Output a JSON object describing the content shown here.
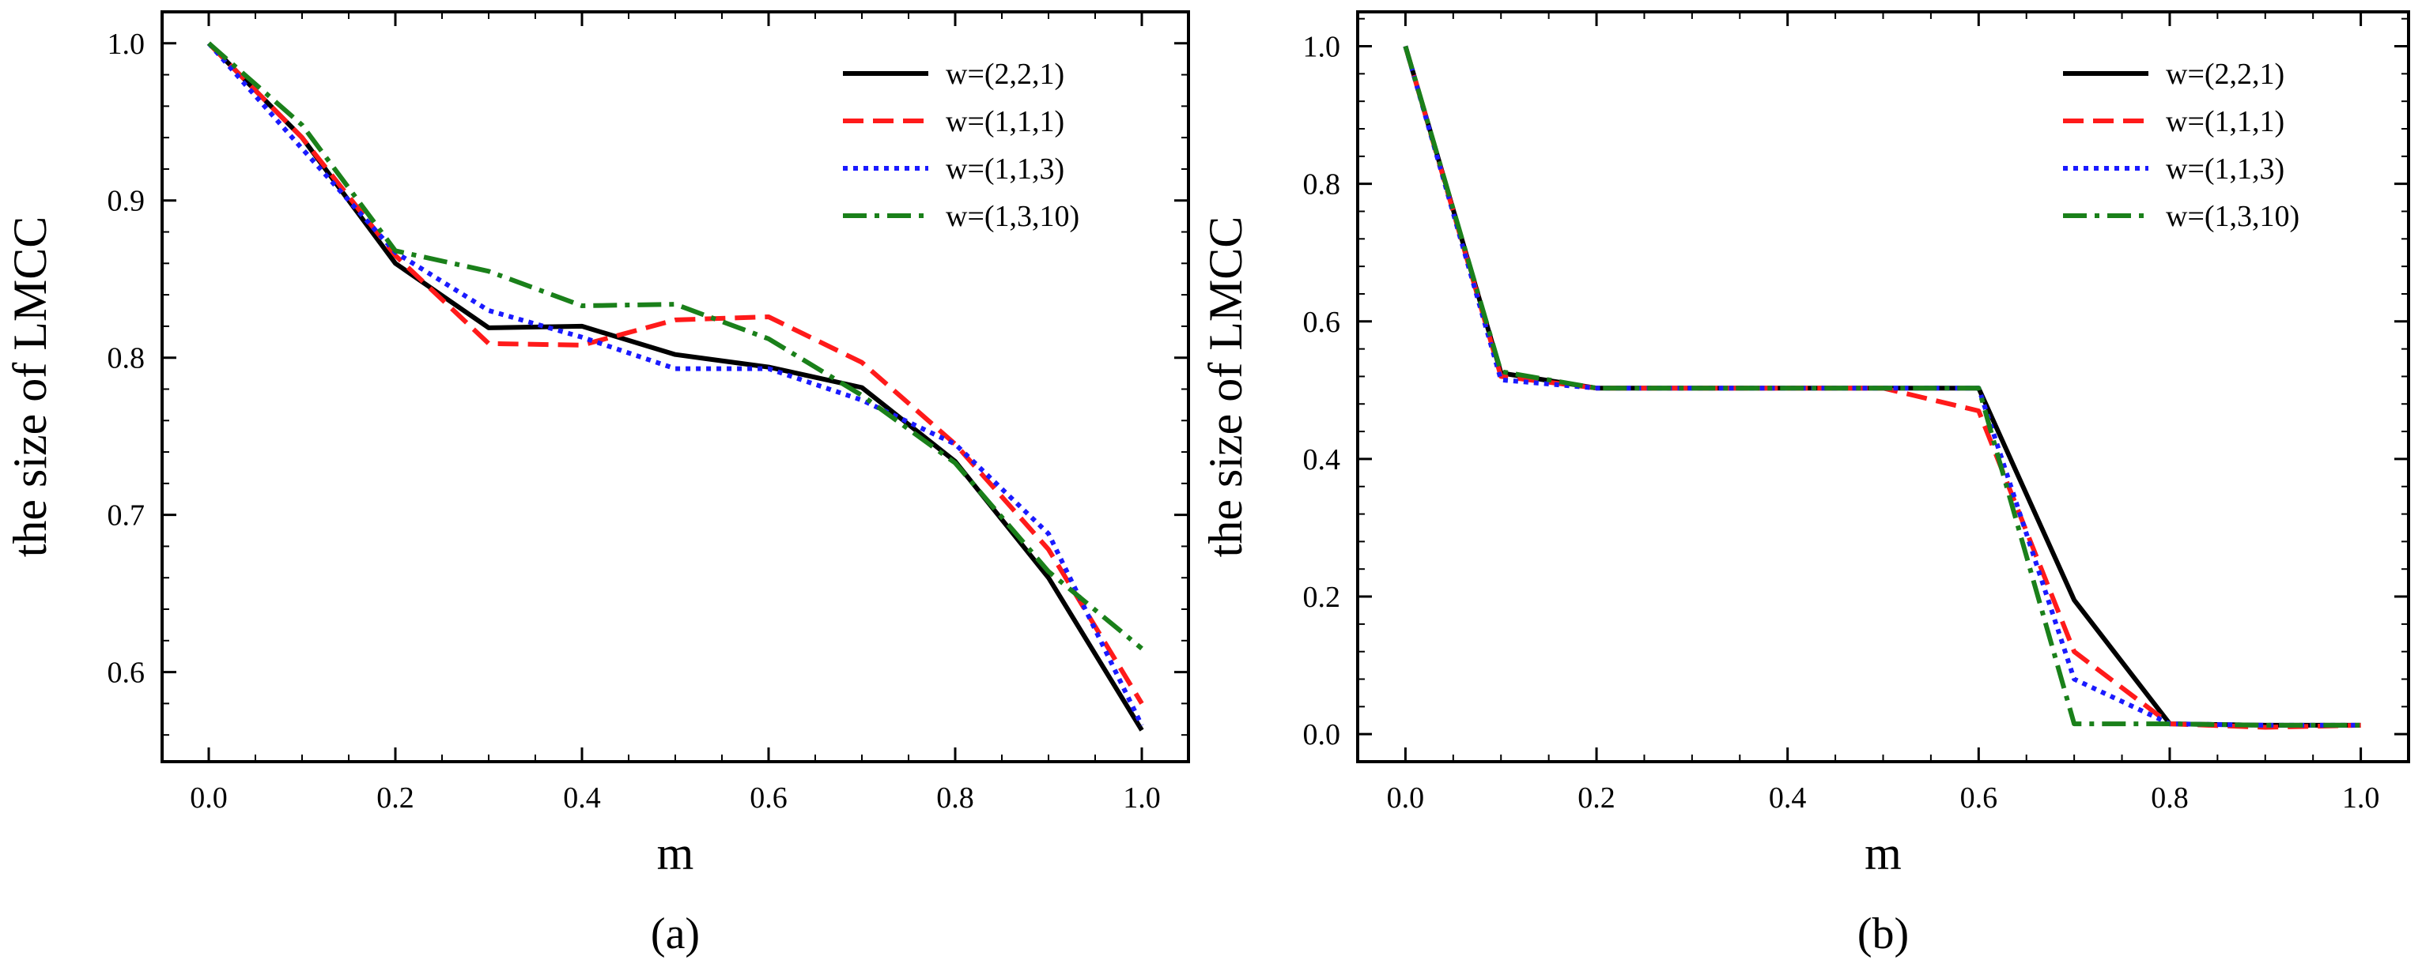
{
  "chart_data": [
    {
      "type": "line",
      "caption": "(a)",
      "xlabel": "m",
      "ylabel": "the size of LMCC",
      "xlim": [
        -0.05,
        1.05
      ],
      "ylim": [
        0.543,
        1.02
      ],
      "xticks": [
        0.0,
        0.2,
        0.4,
        0.6,
        0.8,
        1.0
      ],
      "xtick_labels": [
        "0.0",
        "0.2",
        "0.4",
        "0.6",
        "0.8",
        "1.0"
      ],
      "yticks": [
        0.6,
        0.7,
        0.8,
        0.9,
        1.0
      ],
      "ytick_labels": [
        "0.6",
        "0.7",
        "0.8",
        "0.9",
        "1.0"
      ],
      "legend_position": "top-right",
      "x": [
        0.0,
        0.1,
        0.2,
        0.3,
        0.4,
        0.5,
        0.6,
        0.7,
        0.8,
        0.9,
        1.0
      ],
      "series": [
        {
          "name": "w=(2,2,1)",
          "color": "#000000",
          "dash": "solid",
          "values": [
            1.0,
            0.94,
            0.86,
            0.819,
            0.82,
            0.802,
            0.794,
            0.781,
            0.734,
            0.66,
            0.563
          ]
        },
        {
          "name": "w=(1,1,1)",
          "color": "#ff1a1a",
          "dash": "dashed",
          "values": [
            1.0,
            0.94,
            0.865,
            0.809,
            0.808,
            0.824,
            0.826,
            0.797,
            0.745,
            0.678,
            0.58
          ]
        },
        {
          "name": "w=(1,1,3)",
          "color": "#1a1aff",
          "dash": "dotted",
          "values": [
            1.0,
            0.933,
            0.867,
            0.83,
            0.813,
            0.793,
            0.793,
            0.773,
            0.745,
            0.688,
            0.566
          ]
        },
        {
          "name": "w=(1,3,10)",
          "color": "#1a801a",
          "dash": "dashdot",
          "values": [
            1.0,
            0.948,
            0.868,
            0.855,
            0.833,
            0.834,
            0.812,
            0.776,
            0.733,
            0.664,
            0.615
          ]
        }
      ]
    },
    {
      "type": "line",
      "caption": "(b)",
      "xlabel": "m",
      "ylabel": "the size of LMCC",
      "xlim": [
        -0.05,
        1.05
      ],
      "ylim": [
        -0.04,
        1.05
      ],
      "xticks": [
        0.0,
        0.2,
        0.4,
        0.6,
        0.8,
        1.0
      ],
      "xtick_labels": [
        "0.0",
        "0.2",
        "0.4",
        "0.6",
        "0.8",
        "1.0"
      ],
      "yticks": [
        0.0,
        0.2,
        0.4,
        0.6,
        0.8,
        1.0
      ],
      "ytick_labels": [
        "0.0",
        "0.2",
        "0.4",
        "0.6",
        "0.8",
        "1.0"
      ],
      "legend_position": "top-right",
      "x": [
        0.0,
        0.1,
        0.2,
        0.3,
        0.4,
        0.5,
        0.6,
        0.7,
        0.8,
        0.9,
        1.0
      ],
      "series": [
        {
          "name": "w=(2,2,1)",
          "color": "#000000",
          "dash": "solid",
          "values": [
            1.0,
            0.525,
            0.503,
            0.503,
            0.503,
            0.503,
            0.503,
            0.195,
            0.015,
            0.013,
            0.013
          ]
        },
        {
          "name": "w=(1,1,1)",
          "color": "#ff1a1a",
          "dash": "dashed",
          "values": [
            1.0,
            0.52,
            0.503,
            0.503,
            0.503,
            0.503,
            0.47,
            0.12,
            0.015,
            0.01,
            0.013
          ]
        },
        {
          "name": "w=(1,1,3)",
          "color": "#1a1aff",
          "dash": "dotted",
          "values": [
            1.0,
            0.515,
            0.503,
            0.503,
            0.503,
            0.503,
            0.503,
            0.08,
            0.015,
            0.013,
            0.013
          ]
        },
        {
          "name": "w=(1,3,10)",
          "color": "#1a801a",
          "dash": "dashdot",
          "values": [
            1.0,
            0.527,
            0.503,
            0.503,
            0.503,
            0.503,
            0.503,
            0.015,
            0.015,
            0.013,
            0.013
          ]
        }
      ]
    }
  ]
}
